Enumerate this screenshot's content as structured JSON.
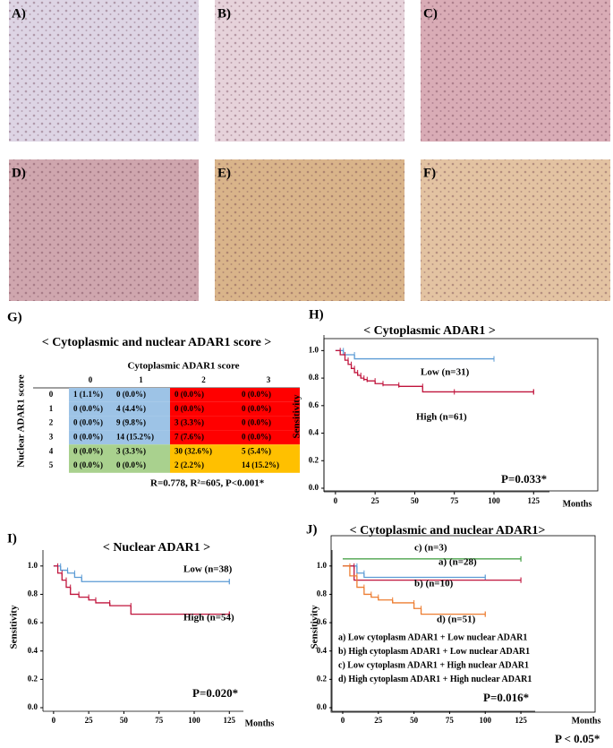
{
  "images": [
    {
      "label": "A)"
    },
    {
      "label": "B)"
    },
    {
      "label": "C)"
    },
    {
      "label": "D)"
    },
    {
      "label": "E)"
    },
    {
      "label": "F)"
    }
  ],
  "table": {
    "label": "G)",
    "title": "< Cytoplasmic and nuclear ADAR1 score >",
    "column_title": "Cytoplasmic ADAR1 score",
    "row_title": "Nuclear ADAR1 score",
    "columns": [
      "0",
      "1",
      "2",
      "3"
    ],
    "row_labels": [
      "0",
      "1",
      "2",
      "3",
      "4",
      "5"
    ],
    "rows": [
      [
        "1 (1.1%)",
        "0 (0.0%)",
        "0 (0.0%)",
        "0 (0.0%)"
      ],
      [
        "0 (0.0%)",
        "4 (4.4%)",
        "0 (0.0%)",
        "0 (0.0%)"
      ],
      [
        "0 (0.0%)",
        "9 (9.8%)",
        "3 (3.3%)",
        "0 (0.0%)"
      ],
      [
        "0 (0.0%)",
        "14 (15.2%)",
        "7 (7.6%)",
        "0 (0.0%)"
      ],
      [
        "0 (0.0%)",
        "3 (3.3%)",
        "30 (32.6%)",
        "5 (5.4%)"
      ],
      [
        "0 (0.0%)",
        "0 (0.0%)",
        "2 (2.2%)",
        "14 (15.2%)"
      ]
    ],
    "note": "R=0.778, R²=605, P<0.001*"
  },
  "chart_data": [
    {
      "type": "line",
      "label": "H)",
      "title": "< Cytoplasmic ADAR1 >",
      "xlabel": "Months",
      "ylabel": "Sensitivity",
      "p_value": "P=0.033*",
      "xlim": [
        -5,
        135
      ],
      "ylim": [
        0,
        1.1
      ],
      "xticks": [
        0,
        25,
        50,
        75,
        100,
        125
      ],
      "yticks": [
        {
          "value": 0,
          "label": "0.0"
        },
        {
          "value": 0.2,
          "label": "0.2"
        },
        {
          "value": 0.4,
          "label": "0.4"
        },
        {
          "value": 0.6,
          "label": "0.6"
        },
        {
          "value": 0.8,
          "label": "0.8"
        },
        {
          "value": 1,
          "label": "1.0"
        }
      ],
      "series": [
        {
          "name": "Low (n=31)",
          "color": "#5b9bd5",
          "x": [
            0,
            5,
            12,
            100
          ],
          "values": [
            1,
            0.97,
            0.94,
            0.94
          ]
        },
        {
          "name": "High (n=61)",
          "color": "#c0143c",
          "x": [
            0,
            3,
            6,
            8,
            10,
            12,
            14,
            16,
            18,
            20,
            25,
            30,
            40,
            55,
            75,
            125
          ],
          "values": [
            1,
            0.97,
            0.93,
            0.9,
            0.87,
            0.84,
            0.82,
            0.8,
            0.79,
            0.78,
            0.76,
            0.75,
            0.74,
            0.7,
            0.7,
            0.7
          ]
        }
      ]
    },
    {
      "type": "line",
      "label": "I)",
      "title": "< Nuclear ADAR1 >",
      "xlabel": "Months",
      "ylabel": "Sensitivity",
      "p_value": "P=0.020*",
      "xlim": [
        -5,
        135
      ],
      "ylim": [
        0,
        1.1
      ],
      "xticks": [
        0,
        25,
        50,
        75,
        100,
        125
      ],
      "yticks": [
        {
          "value": 0,
          "label": "0.0"
        },
        {
          "value": 0.2,
          "label": "0.2"
        },
        {
          "value": 0.4,
          "label": "0.4"
        },
        {
          "value": 0.6,
          "label": "0.6"
        },
        {
          "value": 0.8,
          "label": "0.8"
        },
        {
          "value": 1,
          "label": "1.0"
        }
      ],
      "series": [
        {
          "name": "Low (n=38)",
          "color": "#5b9bd5",
          "x": [
            0,
            5,
            10,
            15,
            20,
            125
          ],
          "values": [
            1,
            0.97,
            0.95,
            0.92,
            0.89,
            0.89
          ]
        },
        {
          "name": "High (n=54)",
          "color": "#c0143c",
          "x": [
            0,
            3,
            6,
            9,
            12,
            18,
            25,
            30,
            40,
            55,
            125
          ],
          "values": [
            1,
            0.95,
            0.9,
            0.85,
            0.8,
            0.78,
            0.76,
            0.74,
            0.72,
            0.66,
            0.66
          ]
        }
      ]
    },
    {
      "type": "line",
      "label": "J)",
      "title": "< Cytoplasmic and nuclear ADAR1>",
      "xlabel": "Months",
      "ylabel": "Sensitivity",
      "p_value": "P=0.016*",
      "xlim": [
        -5,
        135
      ],
      "ylim": [
        0,
        1.1
      ],
      "xticks": [
        0,
        25,
        50,
        75,
        100,
        125
      ],
      "yticks": [
        {
          "value": 0,
          "label": "0.0"
        },
        {
          "value": 0.2,
          "label": "0.2"
        },
        {
          "value": 0.4,
          "label": "0.4"
        },
        {
          "value": 0.6,
          "label": "0.6"
        },
        {
          "value": 0.8,
          "label": "0.8"
        },
        {
          "value": 1,
          "label": "1.0"
        }
      ],
      "series": [
        {
          "name": "c) (n=3)",
          "color": "#3a9a3a",
          "x": [
            0,
            125
          ],
          "values": [
            1.05,
            1.05
          ]
        },
        {
          "name": "a) (n=28)",
          "color": "#5b9bd5",
          "x": [
            0,
            10,
            15,
            100
          ],
          "values": [
            1,
            0.95,
            0.92,
            0.92
          ]
        },
        {
          "name": "b) (n=10)",
          "color": "#c0143c",
          "x": [
            0,
            8,
            125
          ],
          "values": [
            1,
            0.9,
            0.9
          ]
        },
        {
          "name": "d) (n=51)",
          "color": "#ed7d31",
          "x": [
            0,
            5,
            10,
            15,
            20,
            25,
            35,
            50,
            55,
            100
          ],
          "values": [
            1,
            0.93,
            0.85,
            0.8,
            0.78,
            0.76,
            0.74,
            0.7,
            0.66,
            0.66
          ]
        }
      ],
      "legend_notes": [
        "a)   Low cytoplasm ADAR1 + Low nuclear ADAR1",
        "b)   High cytoplasm ADAR1 + Low nuclear ADAR1",
        "c)   Low cytoplasm ADAR1 + High nuclear ADAR1",
        "d)   High cytoplasm ADAR1 + High nuclear ADAR1"
      ]
    }
  ],
  "footnote": "P < 0.05*"
}
